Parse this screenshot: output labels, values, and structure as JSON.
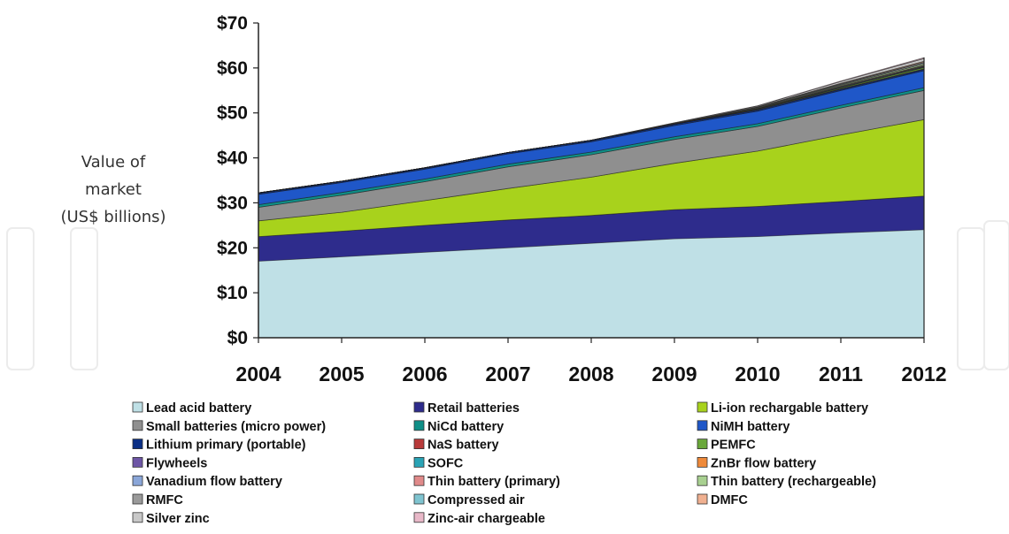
{
  "chart_data": {
    "type": "area",
    "stacked": true,
    "title": "",
    "xlabel": "",
    "ylabel_lines": [
      "Value of",
      "market",
      "(US$ billions)"
    ],
    "x": [
      2004,
      2005,
      2006,
      2007,
      2008,
      2009,
      2010,
      2011,
      2012
    ],
    "ylim": [
      0,
      70
    ],
    "y_ticks": [
      "$0",
      "$10",
      "$20",
      "$30",
      "$40",
      "$50",
      "$60",
      "$70"
    ],
    "legend_position": "bottom",
    "grid": false,
    "series": [
      {
        "name": "Lead acid battery",
        "color": "#bfe0e6",
        "values": [
          17,
          18,
          19,
          20,
          21,
          22,
          22.5,
          23.3,
          24
        ]
      },
      {
        "name": "Retail batteries",
        "color": "#2e2c8c",
        "values": [
          5.5,
          5.7,
          6,
          6.2,
          6.2,
          6.5,
          6.7,
          7,
          7.5
        ]
      },
      {
        "name": "Li-ion rechargable battery",
        "color": "#a8d21c",
        "values": [
          3.5,
          4.2,
          5.5,
          7,
          8.5,
          10.3,
          12.3,
          14.8,
          17
        ]
      },
      {
        "name": "Small batteries (micro power)",
        "color": "#8f8f8f",
        "values": [
          3,
          3.8,
          4.2,
          4.8,
          5,
          5.3,
          5.5,
          6,
          6.5
        ]
      },
      {
        "name": "NiCd battery",
        "color": "#0f8f87",
        "values": [
          0.6,
          0.6,
          0.6,
          0.6,
          0.6,
          0.6,
          0.6,
          0.6,
          0.6
        ]
      },
      {
        "name": "NiMH battery",
        "color": "#1f57c8",
        "values": [
          2.3,
          2.2,
          2.2,
          2.3,
          2.3,
          2.5,
          2.8,
          3.3,
          3.8
        ]
      },
      {
        "name": "Lithium primary (portable)",
        "color": "#0b2f86",
        "values": [
          0.3,
          0.3,
          0.3,
          0.3,
          0.3,
          0.3,
          0.3,
          0.3,
          0.3
        ]
      },
      {
        "name": "NaS battery",
        "color": "#b83a3a",
        "values": [
          0,
          0,
          0,
          0,
          0,
          0,
          0.05,
          0.1,
          0.1
        ]
      },
      {
        "name": "PEMFC",
        "color": "#6aa83a",
        "values": [
          0,
          0,
          0,
          0,
          0,
          0.05,
          0.1,
          0.2,
          0.3
        ]
      },
      {
        "name": "Flywheels",
        "color": "#6e56a6",
        "values": [
          0,
          0,
          0,
          0,
          0,
          0,
          0.05,
          0.05,
          0.1
        ]
      },
      {
        "name": "SOFC",
        "color": "#2aa3b5",
        "values": [
          0,
          0,
          0,
          0,
          0,
          0,
          0.05,
          0.1,
          0.1
        ]
      },
      {
        "name": "ZnBr flow battery",
        "color": "#ef8a3a",
        "values": [
          0,
          0,
          0,
          0,
          0,
          0,
          0,
          0.05,
          0.1
        ]
      },
      {
        "name": "Vanadium flow battery",
        "color": "#8aa6d8",
        "values": [
          0,
          0,
          0,
          0,
          0,
          0,
          0.05,
          0.1,
          0.1
        ]
      },
      {
        "name": "Thin battery (primary)",
        "color": "#e08a8a",
        "values": [
          0,
          0,
          0,
          0,
          0,
          0.05,
          0.05,
          0.1,
          0.1
        ]
      },
      {
        "name": "Thin battery (rechargeable)",
        "color": "#a8d090",
        "values": [
          0,
          0,
          0,
          0,
          0,
          0.05,
          0.1,
          0.2,
          0.3
        ]
      },
      {
        "name": "RMFC",
        "color": "#9a9a9a",
        "values": [
          0,
          0,
          0,
          0,
          0,
          0.05,
          0.1,
          0.2,
          0.3
        ]
      },
      {
        "name": "Compressed air",
        "color": "#7fc4d0",
        "values": [
          0,
          0,
          0,
          0,
          0,
          0,
          0.05,
          0.1,
          0.1
        ]
      },
      {
        "name": "DMFC",
        "color": "#f0b090",
        "values": [
          0,
          0,
          0,
          0,
          0,
          0,
          0.05,
          0.1,
          0.2
        ]
      },
      {
        "name": "Silver zinc",
        "color": "#c8c8c8",
        "values": [
          0,
          0,
          0,
          0,
          0.05,
          0.1,
          0.2,
          0.4,
          0.6
        ]
      },
      {
        "name": "Zinc-air chargeable",
        "color": "#e8b8c8",
        "values": [
          0,
          0,
          0,
          0,
          0,
          0,
          0.05,
          0.1,
          0.2
        ]
      }
    ]
  }
}
